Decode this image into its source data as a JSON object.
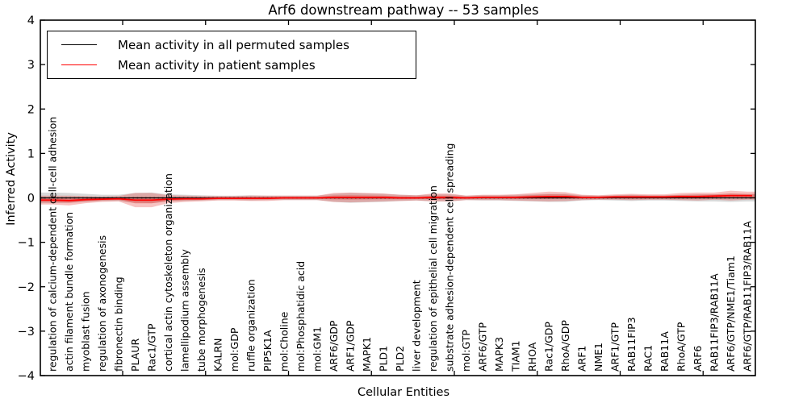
{
  "figure": {
    "title": "Arf6 downstream pathway -- 53 samples",
    "xlabel": "Cellular Entities",
    "ylabel": "Inferred Activity"
  },
  "legend": {
    "items": [
      {
        "label": "Mean activity in all permuted samples",
        "color": "#000000"
      },
      {
        "label": "Mean activity in patient samples",
        "color": "#ff0000"
      }
    ]
  },
  "chart_data": {
    "type": "line",
    "title": "Arf6 downstream pathway -- 53 samples",
    "xlabel": "Cellular Entities",
    "ylabel": "Inferred Activity",
    "ylim": [
      -4,
      4
    ],
    "yticks": [
      4,
      3,
      2,
      1,
      0,
      -1,
      -2,
      -3,
      -4
    ],
    "grid": false,
    "legend_position": "upper left",
    "zero_line_style": "dotted",
    "categories": [
      "regulation of calcium-dependent cell-cell adhesion",
      "actin filament bundle formation",
      "myoblast fusion",
      "regulation of axonogenesis",
      "fibronectin binding",
      "PLAUR",
      "Rac1/GTP",
      "cortical actin cytoskeleton organization",
      "lamellipodium assembly",
      "tube morphogenesis",
      "KALRN",
      "mol:GDP",
      "ruffle organization",
      "PIP5K1A",
      "mol:Choline",
      "mol:Phosphatidic acid",
      "mol:GM1",
      "ARF6/GDP",
      "ARF1/GDP",
      "MAPK1",
      "PLD1",
      "PLD2",
      "liver development",
      "regulation of epithelial cell migration",
      "substrate adhesion-dependent cell spreading",
      "mol:GTP",
      "ARF6/GTP",
      "MAPK3",
      "TIAM1",
      "RHOA",
      "Rac1/GDP",
      "RhoA/GDP",
      "ARF1",
      "NME1",
      "ARF1/GTP",
      "RAB11FIP3",
      "RAC1",
      "RAB11A",
      "RhoA/GTP",
      "ARF6",
      "RAB11FIP3/RAB11A",
      "ARF6/GTP/NME1/Tiam1",
      "ARF6/GTP/RAB11FIP3/RAB11A"
    ],
    "series": [
      {
        "name": "Mean activity in all permuted samples",
        "color": "#000000",
        "band_color": "#999999",
        "values": [
          0.0,
          0.0,
          0.0,
          0.0,
          0.0,
          0.0,
          0.0,
          0.0,
          0.0,
          0.0,
          0.0,
          0.0,
          0.0,
          0.0,
          0.0,
          0.0,
          0.0,
          0.0,
          0.0,
          0.0,
          0.0,
          0.0,
          0.0,
          0.0,
          0.0,
          0.0,
          0.0,
          0.0,
          0.0,
          0.0,
          0.0,
          0.0,
          0.0,
          0.0,
          0.0,
          0.0,
          0.0,
          0.0,
          0.0,
          0.0,
          0.0,
          0.0,
          0.0
        ],
        "band": [
          0.12,
          0.11,
          0.09,
          0.07,
          0.07,
          0.11,
          0.12,
          0.08,
          0.07,
          0.06,
          0.05,
          0.05,
          0.06,
          0.05,
          0.05,
          0.05,
          0.05,
          0.09,
          0.11,
          0.1,
          0.09,
          0.07,
          0.06,
          0.08,
          0.08,
          0.05,
          0.06,
          0.06,
          0.07,
          0.08,
          0.09,
          0.09,
          0.06,
          0.05,
          0.06,
          0.07,
          0.06,
          0.06,
          0.07,
          0.08,
          0.08,
          0.09,
          0.08
        ]
      },
      {
        "name": "Mean activity in patient samples",
        "color": "#ff0000",
        "band_color": "#e53935",
        "values": [
          -0.05,
          -0.06,
          -0.04,
          -0.03,
          -0.02,
          -0.05,
          -0.05,
          -0.03,
          -0.02,
          -0.02,
          -0.01,
          -0.01,
          -0.01,
          -0.01,
          0.0,
          0.0,
          0.0,
          0.01,
          0.01,
          0.01,
          0.01,
          0.0,
          0.0,
          0.01,
          0.01,
          0.0,
          0.01,
          0.01,
          0.01,
          0.02,
          0.03,
          0.03,
          0.01,
          0.01,
          0.02,
          0.02,
          0.02,
          0.02,
          0.03,
          0.03,
          0.04,
          0.05,
          0.05
        ],
        "band": [
          0.1,
          0.11,
          0.08,
          0.06,
          0.06,
          0.16,
          0.16,
          0.09,
          0.07,
          0.06,
          0.05,
          0.05,
          0.06,
          0.06,
          0.05,
          0.05,
          0.05,
          0.1,
          0.11,
          0.1,
          0.09,
          0.07,
          0.06,
          0.09,
          0.09,
          0.05,
          0.06,
          0.06,
          0.07,
          0.09,
          0.11,
          0.1,
          0.06,
          0.05,
          0.06,
          0.07,
          0.06,
          0.06,
          0.08,
          0.09,
          0.08,
          0.11,
          0.09
        ]
      }
    ]
  }
}
